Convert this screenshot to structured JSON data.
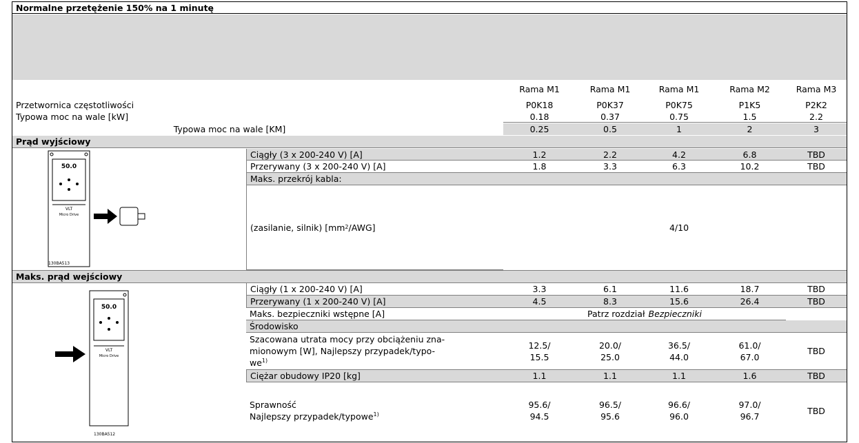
{
  "title": "Normalne przetężenie 150% na 1 minutę",
  "frames": [
    "Rama M1",
    "Rama M1",
    "Rama M1",
    "Rama M2",
    "Rama M3"
  ],
  "converter": {
    "label": "Przetwornica częstotliwości",
    "values": [
      "P0K18",
      "P0K37",
      "P0K75",
      "P1K5",
      "P2K2"
    ]
  },
  "power_kw": {
    "label": "Typowa moc na wale [kW]",
    "values": [
      "0.18",
      "0.37",
      "0.75",
      "1.5",
      "2.2"
    ]
  },
  "power_hp": {
    "label": "Typowa moc na wale [KM]",
    "values": [
      "0.25",
      "0.5",
      "1",
      "2",
      "3"
    ]
  },
  "output": {
    "title": "Prąd wyjściowy",
    "image": {
      "brand": "VLT",
      "product": "Micro Drive",
      "display": "50.0",
      "code": "130BA513"
    },
    "continuous": {
      "label": "Ciągły (3 x 200-240 V) [A]",
      "values": [
        "1.2",
        "2.2",
        "4.2",
        "6.8",
        "TBD"
      ]
    },
    "intermittent": {
      "label": "Przerywany (3 x 200-240 V) [A]",
      "values": [
        "1.8",
        "3.3",
        "6.3",
        "10.2",
        "TBD"
      ]
    },
    "cable": {
      "label": "Maks. przekrój kabla:",
      "sub_label": [
        "(zasilanie, silnik) [mm",
        "2",
        " /AWG]"
      ],
      "value": "4/10"
    }
  },
  "input": {
    "title": "Maks. prąd wejściowy",
    "image": {
      "brand": "VLT",
      "product": "Micro Drive",
      "display": "50.0",
      "code": "130BA512"
    },
    "continuous": {
      "label": "Ciągły (1 x 200-240 V) [A]",
      "values": [
        "3.3",
        "6.1",
        "11.6",
        "18.7",
        "TBD"
      ]
    },
    "intermittent": {
      "label": "Przerywany (1 x 200-240 V) [A]",
      "values": [
        "4.5",
        "8.3",
        "15.6",
        "26.4",
        "TBD"
      ]
    },
    "fuses": {
      "label": "Maks. bezpieczniki wstępne [A]",
      "note": "Patrz rozdział",
      "note_ref": "Bezpieczniki"
    },
    "environment": "Środowisko",
    "power_loss": {
      "label": [
        "Szacowana utrata mocy przy obciążeniu zna-",
        "mionowym [W], Najlepszy przypadek/typo-",
        "we"
      ],
      "footnote": "1)",
      "values": [
        [
          "12.5/",
          "15.5"
        ],
        [
          "20.0/",
          "25.0"
        ],
        [
          "36.5/",
          "44.0"
        ],
        [
          "61.0/",
          "67.0"
        ],
        [
          "TBD"
        ]
      ]
    },
    "weight": {
      "label": "Ciężar obudowy IP20 [kg]",
      "values": [
        "1.1",
        "1.1",
        "1.1",
        "1.6",
        "TBD"
      ]
    },
    "efficiency": {
      "label": "Sprawność",
      "sub_label": "Najlepszy przypadek/typowe",
      "footnote": "1)",
      "values": [
        [
          "95.6/",
          "94.5"
        ],
        [
          "96.5/",
          "95.6"
        ],
        [
          "96.6/",
          "96.0"
        ],
        [
          "97.0/",
          "96.7"
        ],
        [
          "TBD"
        ]
      ]
    }
  }
}
